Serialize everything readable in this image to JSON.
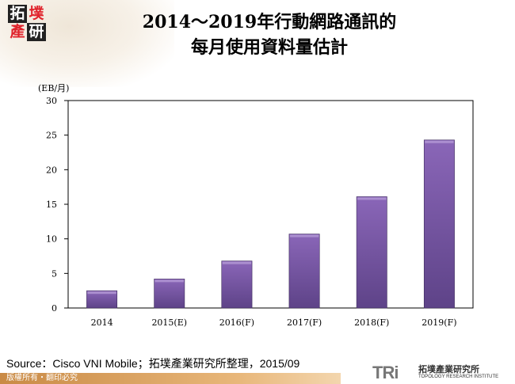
{
  "header": {
    "logo_text": "拓墣產研",
    "title_line1": "2014～2019年行動網路通訊的",
    "title_line2": "每月使用資料量估計"
  },
  "chart_data": {
    "type": "bar",
    "title": "2014～2019年行動網路通訊的每月使用資料量估計",
    "ylabel": "(EB/月)",
    "xlabel": "",
    "categories": [
      "2014",
      "2015(E)",
      "2016(F)",
      "2017(F)",
      "2018(F)",
      "2019(F)"
    ],
    "values": [
      2.5,
      4.2,
      6.8,
      10.7,
      16.1,
      24.3
    ],
    "ylim": [
      0,
      30
    ],
    "yticks": [
      "0",
      "5",
      "10",
      "15",
      "20",
      "25",
      "30"
    ],
    "bar_color": "#7b59a8",
    "grid": false,
    "legend": "none"
  },
  "footer": {
    "source": "Source：Cisco VNI Mobile；拓墣產業研究所整理，2015/09",
    "copyright": "版權所有‧翻印必究",
    "tri_mark": "TRi",
    "tri_cn": "拓墣產業研究所",
    "tri_en": "TOPOLOGY RESEARCH INSTITUTE"
  }
}
